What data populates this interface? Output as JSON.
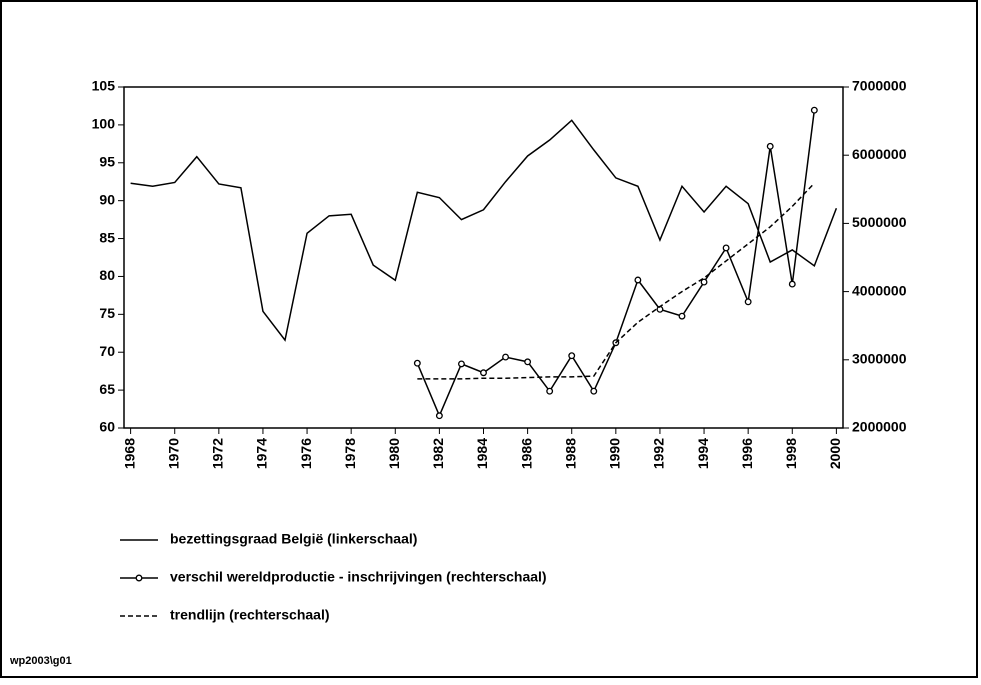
{
  "chart_data": {
    "type": "line",
    "x": [
      1968,
      1969,
      1970,
      1971,
      1972,
      1973,
      1974,
      1975,
      1976,
      1977,
      1978,
      1979,
      1980,
      1981,
      1982,
      1983,
      1984,
      1985,
      1986,
      1987,
      1988,
      1989,
      1990,
      1991,
      1992,
      1993,
      1994,
      1995,
      1996,
      1997,
      1998,
      1999,
      2000
    ],
    "xlim": [
      1967.7,
      2000.3
    ],
    "xticks": [
      1968,
      1970,
      1972,
      1974,
      1976,
      1978,
      1980,
      1982,
      1984,
      1986,
      1988,
      1990,
      1992,
      1994,
      1996,
      1998,
      2000
    ],
    "ylim": [
      60,
      105
    ],
    "yticks": [
      60,
      65,
      70,
      75,
      80,
      85,
      90,
      95,
      100,
      105
    ],
    "y2lim": [
      2000000,
      7000000
    ],
    "y2ticks": [
      2000000,
      3000000,
      4000000,
      5000000,
      6000000,
      7000000
    ],
    "series": [
      {
        "name": "bezettingsgraad België (linkerschaal)",
        "color": "#000000",
        "linestyle": "solid",
        "marker": "none",
        "values": [
          92.3,
          91.9,
          92.4,
          95.8,
          92.2,
          91.7,
          75.4,
          71.6,
          85.7,
          88.0,
          88.2,
          81.5,
          79.5,
          91.1,
          90.4,
          87.5,
          88.8,
          92.5,
          95.9,
          98.0,
          100.6,
          96.7,
          93.0,
          91.9,
          84.8,
          91.9,
          88.5,
          91.9,
          89.6,
          81.9,
          83.5,
          81.4,
          89.0
        ]
      },
      {
        "name": "verschil wereldproductie - inschrijvingen (rechterschaal)",
        "color": "#000000",
        "linestyle": "solid",
        "marker": "circle",
        "axis": "y2",
        "values": [
          null,
          null,
          null,
          null,
          null,
          null,
          null,
          null,
          null,
          null,
          null,
          null,
          null,
          2950000,
          2180000,
          2940000,
          2810000,
          3040000,
          2970000,
          2540000,
          3060000,
          2540000,
          3250000,
          4170000,
          3740000,
          3640000,
          4140000,
          4640000,
          3850000,
          6130000,
          4110000,
          6660000,
          null
        ]
      },
      {
        "name": "trendlijn (rechterschaal)",
        "color": "#000000",
        "linestyle": "dashed",
        "marker": "none",
        "axis": "y2",
        "values": [
          null,
          null,
          null,
          null,
          null,
          null,
          null,
          null,
          null,
          null,
          null,
          null,
          null,
          2720000,
          2720000,
          2720000,
          2730000,
          2730000,
          2740000,
          2750000,
          2750000,
          2760000,
          3250000,
          3550000,
          3780000,
          4000000,
          4200000,
          4450000,
          4700000,
          4950000,
          5250000,
          5590000,
          null
        ]
      }
    ],
    "footnote": "wp2003\\g01"
  }
}
